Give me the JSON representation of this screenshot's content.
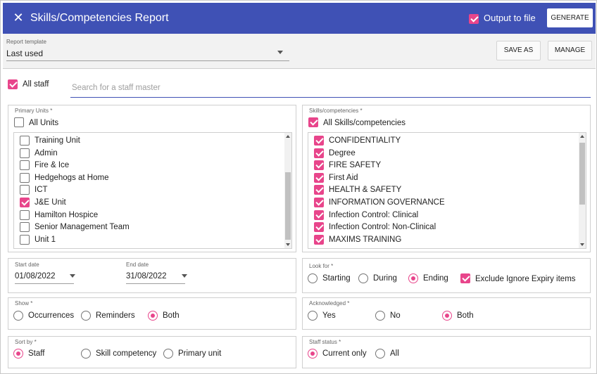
{
  "header": {
    "title": "Skills/Competencies Report",
    "output_label": "Output to file",
    "generate_label": "GENERATE"
  },
  "toolbar": {
    "template_label": "Report template",
    "template_value": "Last used",
    "save_as_label": "SAVE AS",
    "manage_label": "MANAGE"
  },
  "staff": {
    "all_staff_label": "All staff",
    "search_placeholder": "Search for a staff master"
  },
  "primary_units": {
    "label": "Primary Units *",
    "all_label": "All Units",
    "items": [
      {
        "label": "Training Unit",
        "checked": false
      },
      {
        "label": "Admin",
        "checked": false
      },
      {
        "label": "Fire & Ice",
        "checked": false
      },
      {
        "label": "Hedgehogs at Home",
        "checked": false
      },
      {
        "label": "ICT",
        "checked": false
      },
      {
        "label": "J&E Unit",
        "checked": true
      },
      {
        "label": "Hamilton Hospice",
        "checked": false
      },
      {
        "label": "Senior Management Team",
        "checked": false
      },
      {
        "label": "Unit 1",
        "checked": false
      }
    ]
  },
  "skills": {
    "label": "Skills/competencies *",
    "all_label": "All Skills/competencies",
    "items": [
      {
        "label": "CONFIDENTIALITY",
        "checked": true
      },
      {
        "label": "Degree",
        "checked": true
      },
      {
        "label": "FIRE SAFETY",
        "checked": true
      },
      {
        "label": "First Aid",
        "checked": true
      },
      {
        "label": "HEALTH & SAFETY",
        "checked": true
      },
      {
        "label": "INFORMATION GOVERNANCE",
        "checked": true
      },
      {
        "label": "Infection Control: Clinical",
        "checked": true
      },
      {
        "label": "Infection Control: Non-Clinical",
        "checked": true
      },
      {
        "label": "MAXIMS TRAINING",
        "checked": true
      }
    ]
  },
  "dates": {
    "start_label": "Start date",
    "start_value": "01/08/2022",
    "end_label": "End date",
    "end_value": "31/08/2022"
  },
  "look_for": {
    "label": "Look for *",
    "options": [
      "Starting",
      "During",
      "Ending"
    ],
    "selected": "Ending",
    "exclude_label": "Exclude Ignore Expiry items"
  },
  "show": {
    "label": "Show *",
    "options": [
      "Occurrences",
      "Reminders",
      "Both"
    ],
    "selected": "Both"
  },
  "acknowledged": {
    "label": "Acknowledged *",
    "options": [
      "Yes",
      "No",
      "Both"
    ],
    "selected": "Both"
  },
  "sort_by": {
    "label": "Sort by *",
    "options": [
      "Staff",
      "Skill competency",
      "Primary unit"
    ],
    "selected": "Staff"
  },
  "staff_status": {
    "label": "Staff status *",
    "options": [
      "Current only",
      "All"
    ],
    "selected": "Current only"
  },
  "colors": {
    "header_bg": "#3f51b5",
    "accent": "#e8458b"
  },
  "icons": {
    "close": "close-icon",
    "dropdown": "chevron-down-icon"
  }
}
